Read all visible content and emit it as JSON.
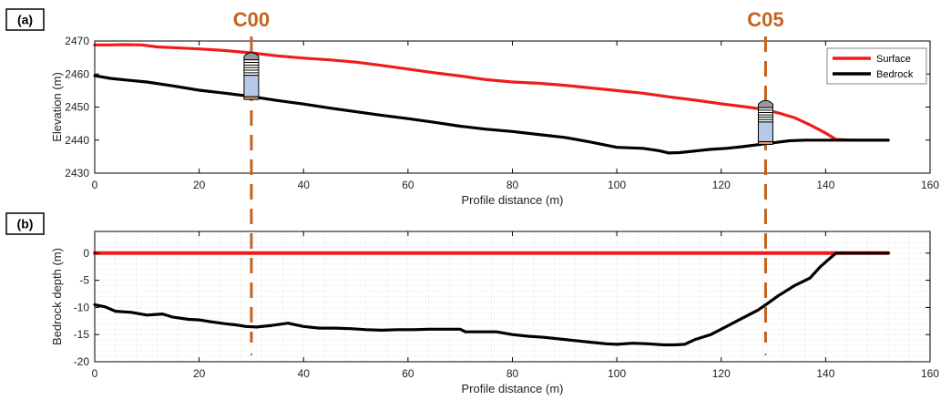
{
  "colors": {
    "surface": "#ee1c1c",
    "bedrock": "#000000",
    "well": "#c5631d",
    "grid": "#c8c8c8",
    "screen": "#b8c8e8",
    "cap": "#999999",
    "base": "#e09a66"
  },
  "chart_data": [
    {
      "panel": "(a)",
      "type": "line",
      "xlabel": "Profile distance (m)",
      "ylabel": "Elevation (m)",
      "xlim": [
        0,
        160
      ],
      "ylim": [
        2430,
        2470
      ],
      "xticks": [
        "0",
        "20",
        "40",
        "60",
        "80",
        "100",
        "120",
        "140",
        "160"
      ],
      "yticks": [
        "2430",
        "2440",
        "2450",
        "2460",
        "2470"
      ],
      "grid": false,
      "legend_position": "top-right",
      "series": [
        {
          "name": "Surface",
          "x": [
            0,
            3,
            6,
            9,
            12,
            15,
            20,
            25,
            30,
            35,
            40,
            45,
            50,
            55,
            60,
            65,
            70,
            75,
            80,
            85,
            90,
            95,
            100,
            105,
            110,
            115,
            120,
            125,
            128,
            131,
            134,
            137,
            140,
            142,
            145,
            152
          ],
          "values": [
            2468.8,
            2468.8,
            2468.9,
            2468.8,
            2468.2,
            2468.0,
            2467.6,
            2467.1,
            2466.4,
            2465.5,
            2464.8,
            2464.3,
            2463.6,
            2462.6,
            2461.5,
            2460.4,
            2459.4,
            2458.3,
            2457.6,
            2457.2,
            2456.6,
            2455.8,
            2455.0,
            2454.2,
            2453.1,
            2452.1,
            2451.0,
            2450.0,
            2449.3,
            2448.2,
            2446.8,
            2444.6,
            2442.1,
            2440.2,
            2440.0,
            2440.0
          ]
        },
        {
          "name": "Bedrock",
          "x": [
            0,
            3,
            6,
            10,
            15,
            20,
            25,
            30,
            35,
            40,
            45,
            50,
            55,
            60,
            65,
            70,
            75,
            80,
            85,
            90,
            95,
            100,
            105,
            108,
            110,
            112,
            115,
            118,
            121,
            124,
            127,
            130,
            133,
            136,
            140,
            145,
            152
          ],
          "values": [
            2459.5,
            2458.7,
            2458.2,
            2457.6,
            2456.4,
            2455.1,
            2454.2,
            2453.2,
            2452.0,
            2450.9,
            2449.7,
            2448.6,
            2447.5,
            2446.5,
            2445.4,
            2444.2,
            2443.3,
            2442.6,
            2441.7,
            2440.8,
            2439.4,
            2437.8,
            2437.5,
            2436.8,
            2436.1,
            2436.2,
            2436.7,
            2437.2,
            2437.5,
            2438.0,
            2438.6,
            2439.2,
            2439.8,
            2440.0,
            2440.0,
            2440.0,
            2440.0
          ]
        }
      ],
      "wells": [
        {
          "label": "C00",
          "x": 30,
          "top": 2466.5,
          "bottom": 2452.3
        },
        {
          "label": "C05",
          "x": 128.5,
          "top": 2452.0,
          "bottom": 2438.7
        }
      ]
    },
    {
      "panel": "(b)",
      "type": "line",
      "xlabel": "Profile distance (m)",
      "ylabel": "Bedrock depth (m)",
      "xlim": [
        0,
        160
      ],
      "ylim": [
        -20,
        4
      ],
      "xticks": [
        "0",
        "20",
        "40",
        "60",
        "80",
        "100",
        "120",
        "140",
        "160"
      ],
      "yticks": [
        "-20",
        "-15",
        "-10",
        "-5",
        "0"
      ],
      "grid": true,
      "series": [
        {
          "name": "Surface",
          "x": [
            0,
            152
          ],
          "values": [
            0,
            0
          ]
        },
        {
          "name": "Bedrock",
          "x": [
            0,
            2,
            4,
            7,
            10,
            13,
            15,
            18,
            20,
            22,
            25,
            27,
            29,
            31,
            34,
            37,
            40,
            43,
            46,
            49,
            52,
            55,
            58,
            61,
            64,
            67,
            70,
            71,
            74,
            77,
            80,
            83,
            86,
            89,
            92,
            95,
            98,
            100,
            103,
            106,
            109,
            111,
            113,
            115,
            118,
            121,
            124,
            127,
            129,
            131,
            134,
            137,
            139,
            141,
            142,
            145,
            152
          ],
          "values": [
            -9.5,
            -9.9,
            -10.7,
            -10.9,
            -11.4,
            -11.2,
            -11.8,
            -12.2,
            -12.3,
            -12.6,
            -13.0,
            -13.2,
            -13.5,
            -13.6,
            -13.3,
            -12.9,
            -13.5,
            -13.8,
            -13.8,
            -13.9,
            -14.1,
            -14.2,
            -14.1,
            -14.1,
            -14.0,
            -14.0,
            -14.0,
            -14.5,
            -14.5,
            -14.5,
            -15.0,
            -15.3,
            -15.5,
            -15.8,
            -16.1,
            -16.4,
            -16.7,
            -16.8,
            -16.6,
            -16.7,
            -16.9,
            -16.9,
            -16.8,
            -15.9,
            -15.0,
            -13.5,
            -12.0,
            -10.5,
            -9.2,
            -7.8,
            -6.0,
            -4.6,
            -2.5,
            -0.8,
            0,
            0,
            0
          ]
        }
      ],
      "wells": [
        {
          "label": "C00",
          "x": 30
        },
        {
          "label": "C05",
          "x": 128.5
        }
      ]
    }
  ]
}
